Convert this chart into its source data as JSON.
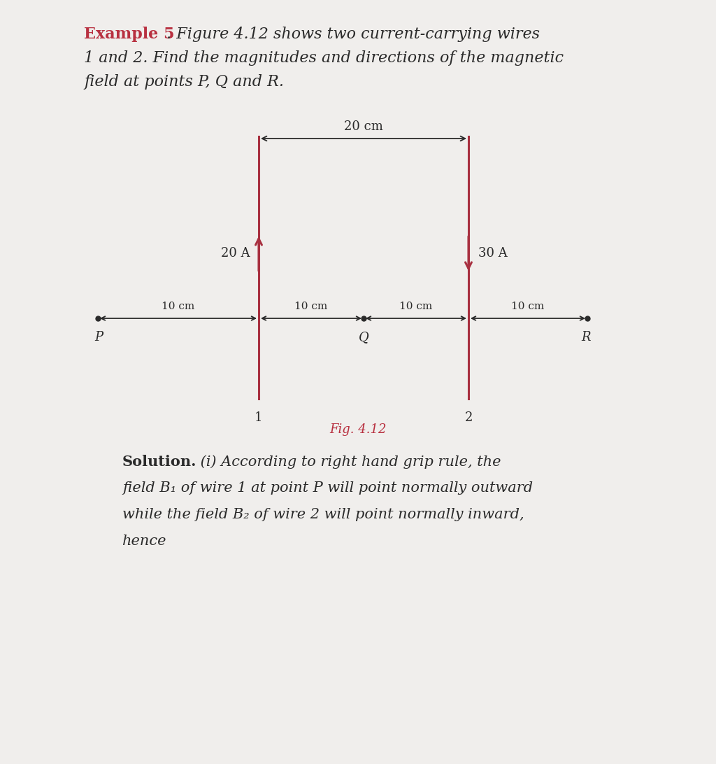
{
  "bg_color": "#f0eeec",
  "wire_color": "#a83040",
  "text_color_black": "#2a2a2a",
  "text_color_red": "#b83040",
  "example_bold": "Example 5",
  "title_rest_line1": ". Figure 4.12 shows two current-carrying wires",
  "title_line2": "1 and 2. Find the magnitudes and directions of the magnetic",
  "title_line3": "field at points P, Q and R.",
  "fig_label": "Fig. 4.12",
  "current1_label": "20 A",
  "current2_label": "30 A",
  "dist_label_top": "20 cm",
  "wire1_label": "1",
  "wire2_label": "2",
  "point_P": "P",
  "point_Q": "Q",
  "point_R": "R",
  "dist_label": "10 cm",
  "sol_bold": "Solution.",
  "sol_italic": " (i) According to right hand grip rule, the",
  "sol_line2": "field B₁ of wire 1 at point P will point normally outward",
  "sol_line3": "while the field B₂ of wire 2 will point normally inward,",
  "sol_line4": "hence"
}
